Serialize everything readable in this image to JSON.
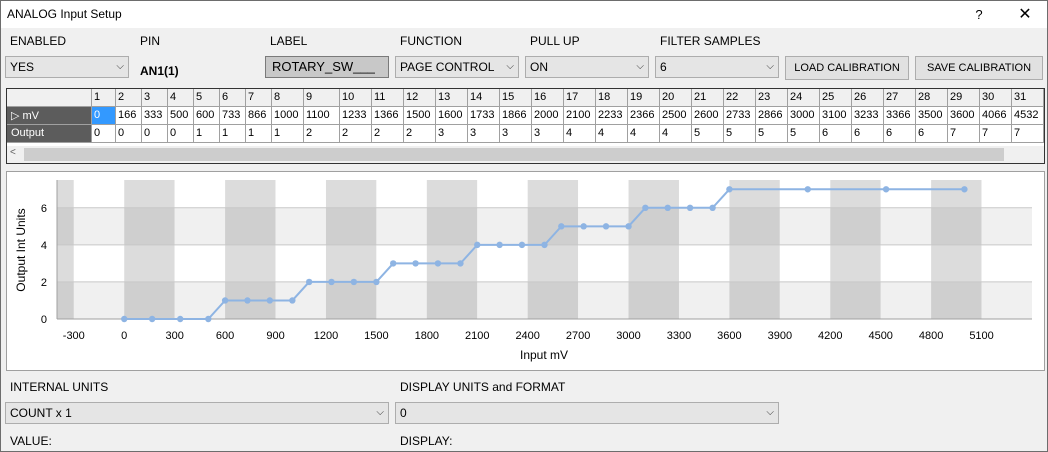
{
  "window": {
    "title": "ANALOG Input Setup",
    "help": "?",
    "close": "✕"
  },
  "headers": {
    "enabled": "ENABLED",
    "pin": "PIN",
    "label": "LABEL",
    "function": "FUNCTION",
    "pull_up": "PULL UP",
    "filter_samples": "FILTER SAMPLES"
  },
  "fields": {
    "enabled": "YES",
    "pin": "AN1(1)",
    "label": "ROTARY_SW___",
    "function": "PAGE CONTROL",
    "pull_up": "ON",
    "filter_samples": "6"
  },
  "buttons": {
    "load": "LOAD CALIBRATION",
    "save": "SAVE CALIBRATION"
  },
  "table": {
    "columns": [
      "1",
      "2",
      "3",
      "4",
      "5",
      "6",
      "7",
      "8",
      "9",
      "10",
      "11",
      "12",
      "13",
      "14",
      "15",
      "16",
      "17",
      "18",
      "19",
      "20",
      "21",
      "22",
      "23",
      "24",
      "25",
      "26",
      "27",
      "28",
      "29",
      "30",
      "31"
    ],
    "rows": [
      {
        "name": "mV",
        "marker": "▷",
        "values": [
          "0",
          "166",
          "333",
          "500",
          "600",
          "733",
          "866",
          "1000",
          "1100",
          "1233",
          "1366",
          "1500",
          "1600",
          "1733",
          "1866",
          "2000",
          "2100",
          "2233",
          "2366",
          "2500",
          "2600",
          "2733",
          "2866",
          "3000",
          "3100",
          "3233",
          "3366",
          "3500",
          "3600",
          "4066",
          "4532"
        ]
      },
      {
        "name": "Output",
        "marker": "",
        "values": [
          "0",
          "0",
          "0",
          "0",
          "1",
          "1",
          "1",
          "1",
          "2",
          "2",
          "2",
          "2",
          "3",
          "3",
          "3",
          "3",
          "4",
          "4",
          "4",
          "4",
          "5",
          "5",
          "5",
          "5",
          "6",
          "6",
          "6",
          "6",
          "7",
          "7",
          "7"
        ]
      }
    ],
    "scroll_left": "<"
  },
  "chart_data": {
    "type": "line",
    "title": "",
    "xlabel": "Input mV",
    "ylabel": "Output Int Units",
    "xlim": [
      -400,
      5400
    ],
    "ylim": [
      0,
      7.5
    ],
    "xticks": [
      -300,
      0,
      300,
      600,
      900,
      1200,
      1500,
      1800,
      2100,
      2400,
      2700,
      3000,
      3300,
      3600,
      3900,
      4200,
      4500,
      4800,
      5100
    ],
    "yticks": [
      0,
      2,
      4,
      6
    ],
    "grid": true,
    "color": "#8eb4e3",
    "x": [
      0,
      166,
      333,
      500,
      600,
      733,
      866,
      1000,
      1100,
      1233,
      1366,
      1500,
      1600,
      1733,
      1866,
      2000,
      2100,
      2233,
      2366,
      2500,
      2600,
      2733,
      2866,
      3000,
      3100,
      3233,
      3366,
      3500,
      3600,
      4066,
      4532,
      4998
    ],
    "y": [
      0,
      0,
      0,
      0,
      1,
      1,
      1,
      1,
      2,
      2,
      2,
      2,
      3,
      3,
      3,
      3,
      4,
      4,
      4,
      4,
      5,
      5,
      5,
      5,
      6,
      6,
      6,
      6,
      7,
      7,
      7,
      7
    ]
  },
  "bottom": {
    "internal_units_label": "INTERNAL UNITS",
    "internal_units": "COUNT x 1",
    "display_units_label": "DISPLAY UNITS and FORMAT",
    "display_units": "0",
    "value_label": "VALUE:",
    "display_label": "DISPLAY:"
  }
}
